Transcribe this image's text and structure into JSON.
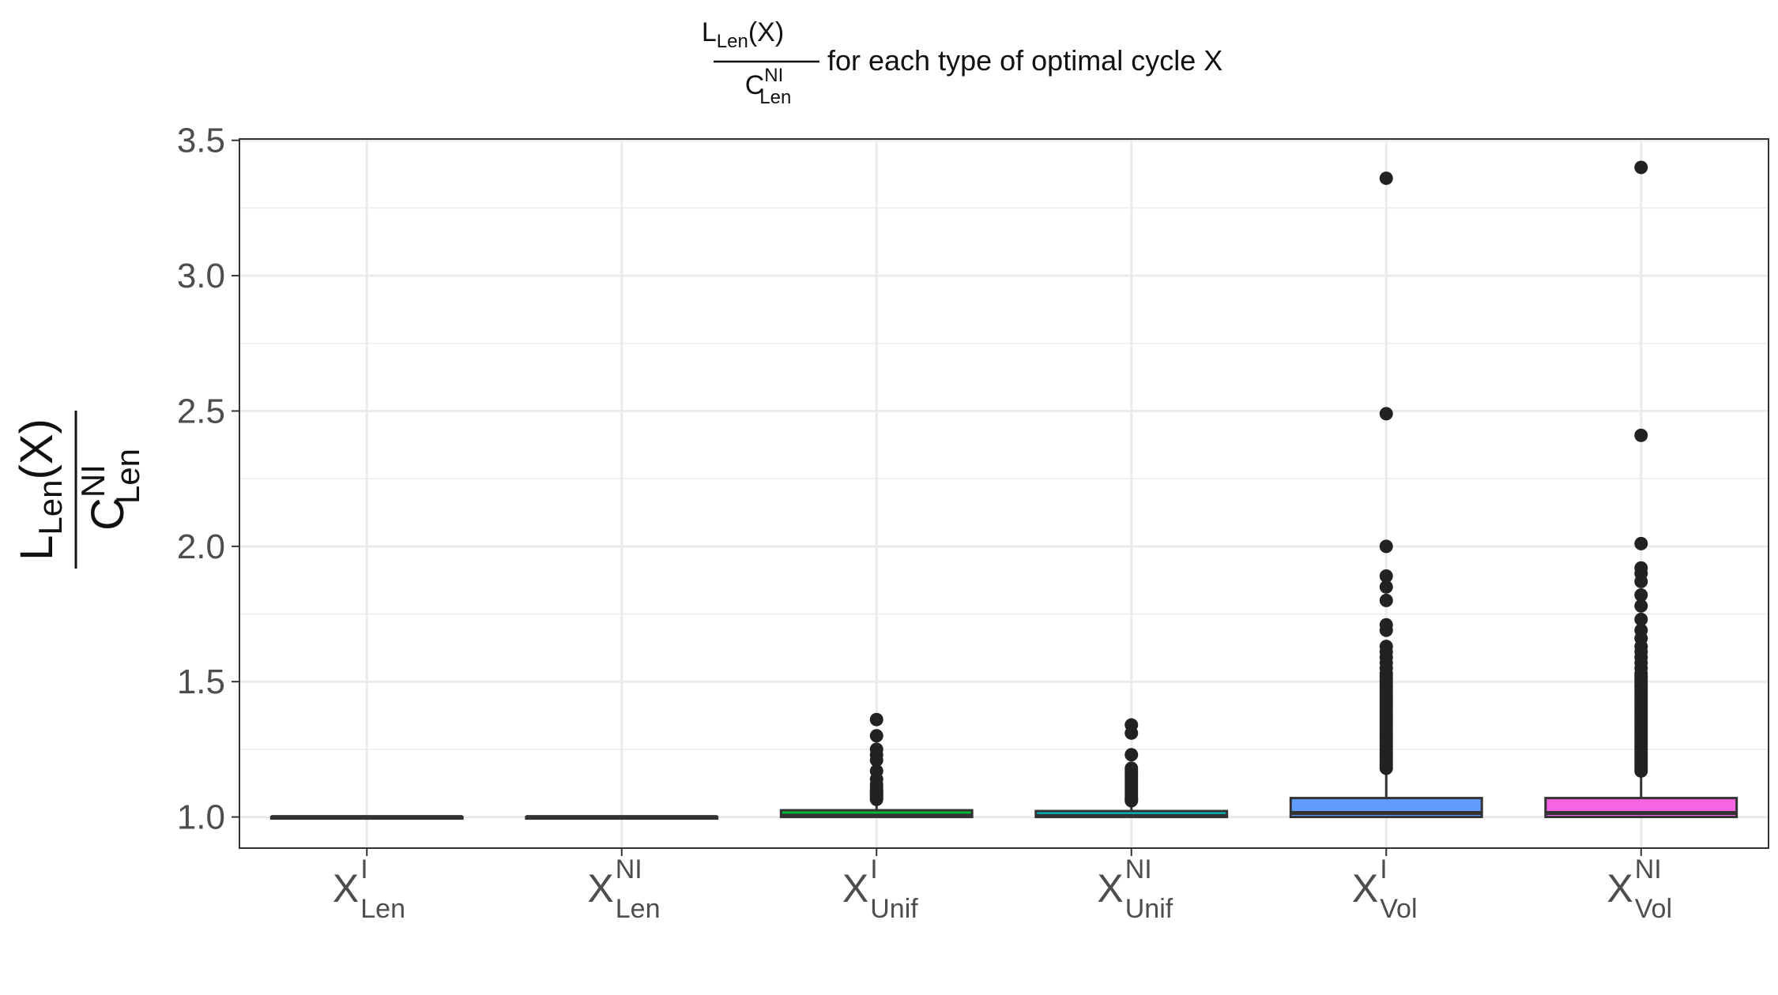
{
  "chart_data": {
    "type": "box",
    "title": {
      "frac_num_main": "L",
      "frac_num_sub": "Len",
      "frac_num_tail": "(X)",
      "frac_den_main": "C",
      "frac_den_sup": "NI",
      "frac_den_sub": "Len",
      "text": "for each type of optimal cycle X"
    },
    "ylabel": {
      "num_main": "L",
      "num_sub": "Len",
      "num_tail": "(X)",
      "den_main": "C",
      "den_sup": "NI",
      "den_sub": "Len"
    },
    "xlabel": "",
    "ylim": [
      0.885,
      3.505
    ],
    "yticks": [
      1.0,
      1.5,
      2.0,
      2.5,
      3.0,
      3.5
    ],
    "ytick_labels": [
      "1.0",
      "1.5",
      "2.0",
      "2.5",
      "3.0",
      "3.5"
    ],
    "grid": true,
    "legend": "none",
    "categories": [
      {
        "main": "X",
        "sup": "I",
        "sub": "Len"
      },
      {
        "main": "X",
        "sup": "NI",
        "sub": "Len"
      },
      {
        "main": "X",
        "sup": "I",
        "sub": "Unif"
      },
      {
        "main": "X",
        "sup": "NI",
        "sub": "Unif"
      },
      {
        "main": "X",
        "sup": "I",
        "sub": "Vol"
      },
      {
        "main": "X",
        "sup": "NI",
        "sub": "Vol"
      }
    ],
    "boxes": [
      {
        "q1": 1.0,
        "median": 1.0,
        "q3": 1.0,
        "whisker_low": 1.0,
        "whisker_high": 1.0,
        "fill": "#F8766D",
        "outliers": []
      },
      {
        "q1": 1.0,
        "median": 1.0,
        "q3": 1.0,
        "whisker_low": 1.0,
        "whisker_high": 1.0,
        "fill": "#B79F00",
        "outliers": []
      },
      {
        "q1": 1.0,
        "median": 1.005,
        "q3": 1.025,
        "whisker_low": 1.0,
        "whisker_high": 1.06,
        "fill": "#00BA38",
        "outliers": [
          1.065,
          1.07,
          1.075,
          1.08,
          1.085,
          1.09,
          1.095,
          1.1,
          1.11,
          1.12,
          1.14,
          1.17,
          1.21,
          1.23,
          1.25,
          1.3,
          1.36
        ]
      },
      {
        "q1": 1.0,
        "median": 1.004,
        "q3": 1.022,
        "whisker_low": 1.0,
        "whisker_high": 1.05,
        "fill": "#00BFC4",
        "outliers": [
          1.06,
          1.065,
          1.07,
          1.08,
          1.09,
          1.1,
          1.11,
          1.12,
          1.13,
          1.14,
          1.15,
          1.16,
          1.17,
          1.18,
          1.23,
          1.31,
          1.34
        ]
      },
      {
        "q1": 1.0,
        "median": 1.015,
        "q3": 1.07,
        "whisker_low": 1.0,
        "whisker_high": 1.17,
        "fill": "#619CFF",
        "outliers": [
          1.18,
          1.19,
          1.2,
          1.21,
          1.22,
          1.23,
          1.24,
          1.25,
          1.26,
          1.27,
          1.28,
          1.29,
          1.3,
          1.31,
          1.32,
          1.33,
          1.34,
          1.35,
          1.36,
          1.37,
          1.38,
          1.39,
          1.4,
          1.41,
          1.42,
          1.43,
          1.44,
          1.45,
          1.46,
          1.47,
          1.48,
          1.49,
          1.5,
          1.51,
          1.52,
          1.53,
          1.55,
          1.57,
          1.59,
          1.61,
          1.63,
          1.69,
          1.71,
          1.8,
          1.85,
          1.89,
          2.0,
          2.49,
          3.36
        ]
      },
      {
        "q1": 1.0,
        "median": 1.015,
        "q3": 1.07,
        "whisker_low": 1.0,
        "whisker_high": 1.16,
        "fill": "#F564E3",
        "outliers": [
          1.17,
          1.18,
          1.19,
          1.2,
          1.21,
          1.22,
          1.23,
          1.24,
          1.25,
          1.26,
          1.27,
          1.28,
          1.29,
          1.3,
          1.31,
          1.32,
          1.33,
          1.34,
          1.35,
          1.36,
          1.37,
          1.38,
          1.39,
          1.4,
          1.41,
          1.42,
          1.43,
          1.44,
          1.45,
          1.46,
          1.47,
          1.48,
          1.49,
          1.5,
          1.51,
          1.52,
          1.53,
          1.55,
          1.57,
          1.59,
          1.61,
          1.63,
          1.66,
          1.69,
          1.73,
          1.78,
          1.82,
          1.87,
          1.9,
          1.92,
          2.01,
          2.41,
          3.4
        ]
      }
    ],
    "colors": {
      "grid": "#ebebeb",
      "panel_border": "#333333",
      "box_line": "#333333",
      "outlier": "#222222"
    }
  }
}
